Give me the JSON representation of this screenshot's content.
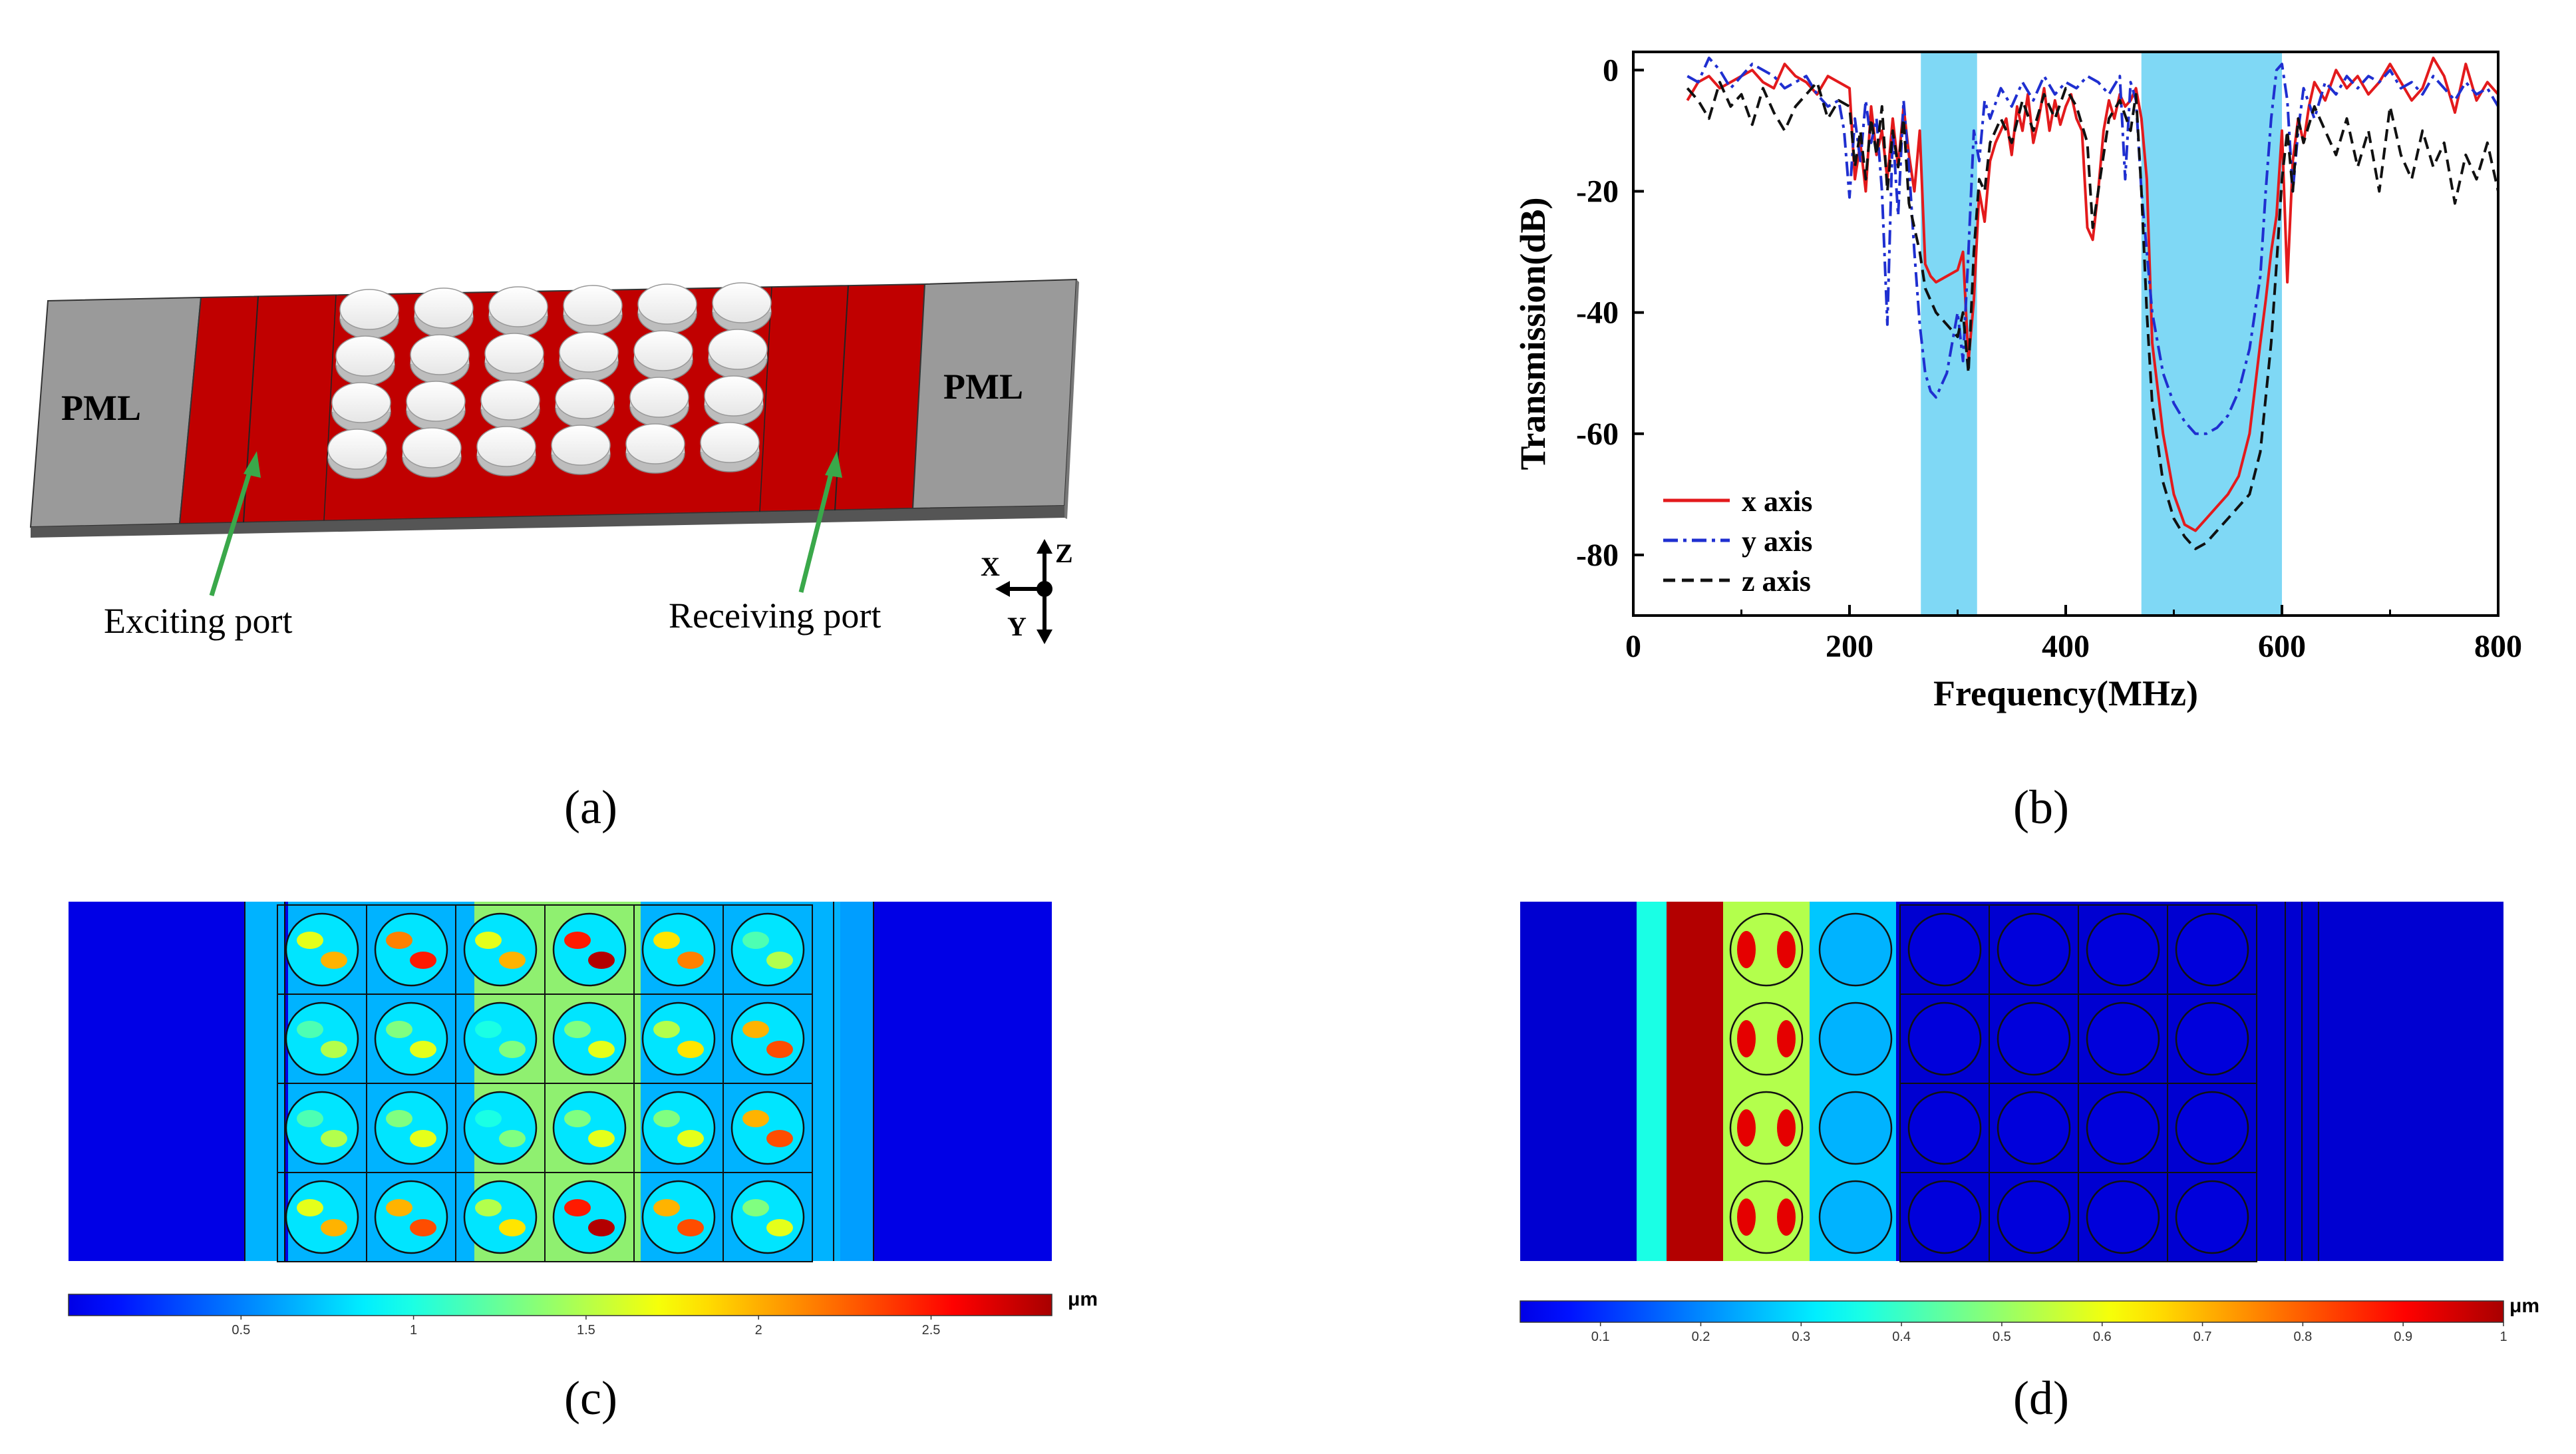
{
  "panel_a": {
    "caption": "(a)",
    "pml_left": "PML",
    "pml_right": "PML",
    "exciting_port": "Exciting port",
    "receiving_port": "Receiving port",
    "axis_x": "X",
    "axis_y": "Y",
    "axis_z": "Z",
    "colors": {
      "substrate": "#c00000",
      "pml": "#9a9a9a",
      "pillar": "#f2f2f2",
      "arrow": "#3aa84a"
    }
  },
  "panel_b": {
    "caption": "(b)",
    "chart_data": {
      "type": "line",
      "xlabel": "Frequency(MHz)",
      "ylabel": "Transmission(dB)",
      "xlim": [
        0,
        800
      ],
      "ylim": [
        -90,
        3
      ],
      "xticks": [
        0,
        200,
        400,
        600,
        800
      ],
      "yticks": [
        0,
        -20,
        -40,
        -60,
        -80
      ],
      "xtick_labels": [
        "0",
        "200",
        "400",
        "600",
        "800"
      ],
      "ytick_labels": [
        "0",
        "-20",
        "-40",
        "-60",
        "-80"
      ],
      "bandgaps": [
        [
          266,
          318
        ],
        [
          470,
          600
        ]
      ],
      "bandgap_color": "#7fd8f5",
      "legend_position": "bottom-left",
      "series": [
        {
          "name": "x axis",
          "color": "#e31a1c",
          "dash": "solid",
          "x": [
            50,
            60,
            70,
            80,
            90,
            100,
            110,
            120,
            130,
            140,
            150,
            160,
            170,
            180,
            190,
            200,
            205,
            210,
            215,
            220,
            225,
            230,
            235,
            240,
            245,
            250,
            255,
            260,
            265,
            270,
            275,
            280,
            290,
            300,
            305,
            310,
            315,
            320,
            325,
            330,
            335,
            340,
            345,
            350,
            355,
            360,
            365,
            370,
            375,
            380,
            385,
            390,
            395,
            400,
            405,
            410,
            415,
            420,
            425,
            430,
            435,
            440,
            445,
            450,
            455,
            460,
            465,
            470,
            475,
            480,
            490,
            500,
            510,
            520,
            530,
            540,
            550,
            560,
            570,
            580,
            585,
            590,
            595,
            600,
            605,
            610,
            615,
            620,
            625,
            630,
            640,
            650,
            660,
            670,
            680,
            690,
            700,
            710,
            720,
            730,
            740,
            750,
            760,
            770,
            780,
            790,
            800
          ],
          "y": [
            -5,
            -2,
            -1,
            -3,
            -2,
            -1,
            0,
            -2,
            -3,
            1,
            -1,
            -2,
            -4,
            -1,
            -2,
            -3,
            -18,
            -12,
            -20,
            -6,
            -14,
            -10,
            -18,
            -8,
            -16,
            -6,
            -14,
            -20,
            -10,
            -32,
            -34,
            -35,
            -34,
            -33,
            -30,
            -48,
            -38,
            -20,
            -25,
            -15,
            -12,
            -10,
            -8,
            -14,
            -6,
            -10,
            -4,
            -12,
            -8,
            -3,
            -10,
            -5,
            -9,
            -6,
            -4,
            -8,
            -10,
            -26,
            -28,
            -20,
            -10,
            -5,
            -8,
            -4,
            -6,
            -5,
            -3,
            -8,
            -18,
            -45,
            -60,
            -70,
            -75,
            -76,
            -74,
            -72,
            -70,
            -67,
            -60,
            -45,
            -38,
            -30,
            -24,
            -10,
            -35,
            -15,
            -8,
            -12,
            -6,
            -2,
            -5,
            0,
            -3,
            -1,
            -4,
            -2,
            1,
            -2,
            -5,
            -3,
            2,
            -1,
            -7,
            1,
            -5,
            -2,
            -4
          ]
        },
        {
          "name": "y axis",
          "color": "#1f2fd0",
          "dash": "dashdot",
          "x": [
            50,
            60,
            70,
            80,
            90,
            100,
            110,
            120,
            130,
            140,
            150,
            160,
            170,
            180,
            190,
            195,
            200,
            205,
            210,
            215,
            220,
            225,
            230,
            235,
            240,
            245,
            250,
            255,
            260,
            265,
            270,
            275,
            280,
            290,
            300,
            305,
            310,
            315,
            320,
            325,
            330,
            340,
            350,
            360,
            370,
            380,
            390,
            400,
            410,
            420,
            430,
            440,
            450,
            455,
            460,
            465,
            470,
            475,
            480,
            490,
            500,
            510,
            520,
            530,
            540,
            550,
            560,
            570,
            580,
            585,
            590,
            595,
            600,
            605,
            610,
            615,
            620,
            630,
            640,
            650,
            660,
            670,
            680,
            690,
            700,
            710,
            720,
            730,
            740,
            750,
            760,
            770,
            780,
            790,
            800
          ],
          "y": [
            -1,
            -2,
            2,
            0,
            -3,
            -1,
            1,
            0,
            -1,
            -3,
            -2,
            -1,
            -4,
            -6,
            -5,
            -10,
            -21,
            -8,
            -15,
            -5,
            -12,
            -8,
            -20,
            -42,
            -10,
            -24,
            -5,
            -16,
            -30,
            -42,
            -50,
            -53,
            -54,
            -50,
            -40,
            -48,
            -30,
            -10,
            -15,
            -5,
            -8,
            -3,
            -6,
            -2,
            -5,
            -1,
            -4,
            -2,
            -3,
            -1,
            -2,
            -4,
            -1,
            -18,
            -2,
            -5,
            -20,
            -30,
            -40,
            -50,
            -55,
            -58,
            -60,
            -60,
            -59,
            -57,
            -53,
            -46,
            -34,
            -20,
            -8,
            0,
            1,
            -5,
            -20,
            -10,
            -3,
            -8,
            -2,
            -4,
            -1,
            -3,
            -1,
            -2,
            0,
            -3,
            -2,
            -4,
            -1,
            -3,
            -5,
            -2,
            -4,
            -3,
            -6
          ]
        },
        {
          "name": "z axis",
          "color": "#111111",
          "dash": "dashed",
          "x": [
            50,
            60,
            70,
            80,
            90,
            100,
            110,
            120,
            130,
            140,
            150,
            160,
            170,
            180,
            190,
            200,
            205,
            210,
            215,
            220,
            225,
            230,
            235,
            240,
            245,
            250,
            255,
            260,
            265,
            270,
            275,
            280,
            290,
            300,
            305,
            310,
            315,
            320,
            325,
            330,
            340,
            350,
            360,
            370,
            380,
            390,
            400,
            410,
            420,
            425,
            430,
            440,
            450,
            460,
            465,
            470,
            475,
            480,
            490,
            500,
            510,
            520,
            530,
            540,
            550,
            560,
            570,
            580,
            590,
            595,
            600,
            605,
            610,
            615,
            620,
            630,
            640,
            650,
            660,
            670,
            680,
            690,
            700,
            710,
            720,
            730,
            740,
            750,
            760,
            770,
            780,
            790,
            800
          ],
          "y": [
            -3,
            -5,
            -8,
            -2,
            -6,
            -4,
            -9,
            -3,
            -7,
            -10,
            -6,
            -4,
            -2,
            -8,
            -5,
            -6,
            -16,
            -10,
            -18,
            -8,
            -14,
            -6,
            -20,
            -10,
            -16,
            -8,
            -22,
            -26,
            -30,
            -36,
            -38,
            -40,
            -42,
            -44,
            -40,
            -50,
            -30,
            -18,
            -20,
            -12,
            -8,
            -12,
            -5,
            -10,
            -4,
            -8,
            -3,
            -6,
            -12,
            -26,
            -20,
            -8,
            -5,
            -10,
            -4,
            -20,
            -40,
            -55,
            -68,
            -74,
            -77,
            -79,
            -78,
            -76,
            -74,
            -72,
            -70,
            -63,
            -45,
            -32,
            -18,
            -10,
            -20,
            -8,
            -12,
            -6,
            -10,
            -14,
            -8,
            -16,
            -10,
            -20,
            -6,
            -14,
            -18,
            -10,
            -16,
            -12,
            -22,
            -14,
            -18,
            -12,
            -20
          ]
        }
      ]
    }
  },
  "panel_c": {
    "caption": "(c)",
    "unit": "μm",
    "colorbar_ticks": [
      "0.5",
      "1",
      "1.5",
      "2",
      "2.5"
    ],
    "colorbar_values": [
      0.5,
      1,
      1.5,
      2,
      2.5
    ],
    "colorbar_range": [
      0,
      2.85
    ]
  },
  "panel_d": {
    "caption": "(d)",
    "unit": "μm",
    "colorbar_ticks": [
      "0.1",
      "0.2",
      "0.3",
      "0.4",
      "0.5",
      "0.6",
      "0.7",
      "0.8",
      "0.9",
      "1"
    ],
    "colorbar_values": [
      0.1,
      0.2,
      0.3,
      0.4,
      0.5,
      0.6,
      0.7,
      0.8,
      0.9,
      1.0
    ],
    "colorbar_range": [
      0.02,
      1.0
    ]
  }
}
